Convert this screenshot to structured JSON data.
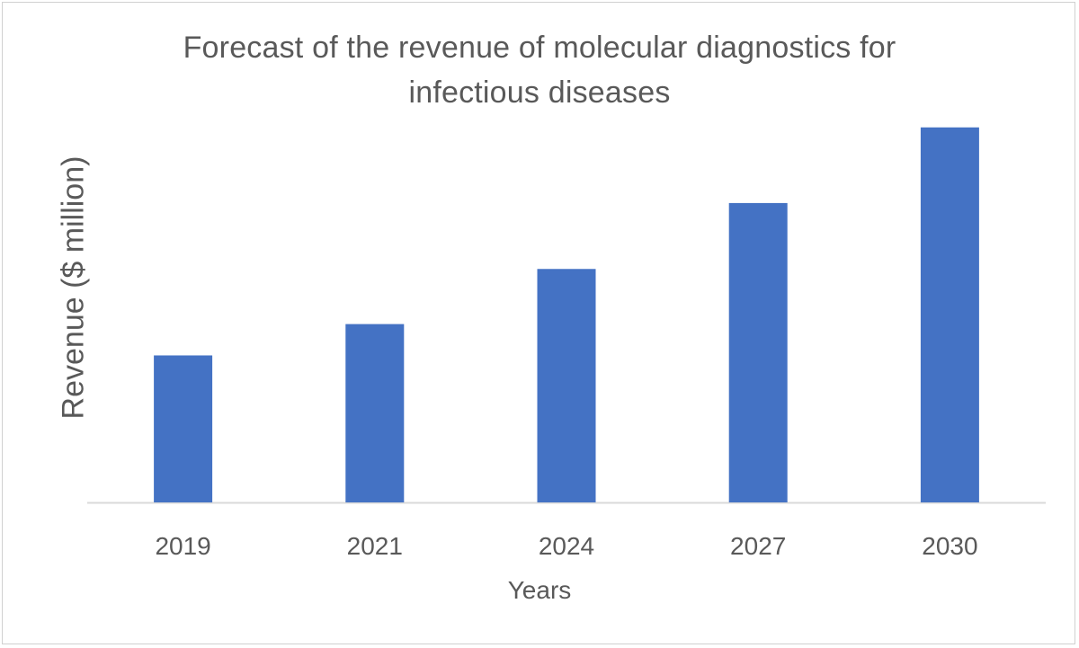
{
  "chart_data": {
    "type": "bar",
    "title_lines": [
      "Forecast of the revenue of molecular diagnostics for",
      "infectious diseases"
    ],
    "xlabel": "Years",
    "ylabel": "Revenue ($ million)",
    "categories": [
      "2019",
      "2021",
      "2024",
      "2027",
      "2030"
    ],
    "values": [
      136,
      165,
      216,
      277,
      347
    ],
    "ylim": [
      0,
      400
    ],
    "grid": false,
    "legend": "none",
    "bar_color": "#4472c4",
    "axis_color": "#d9d9d9",
    "text_color": "#595959"
  }
}
